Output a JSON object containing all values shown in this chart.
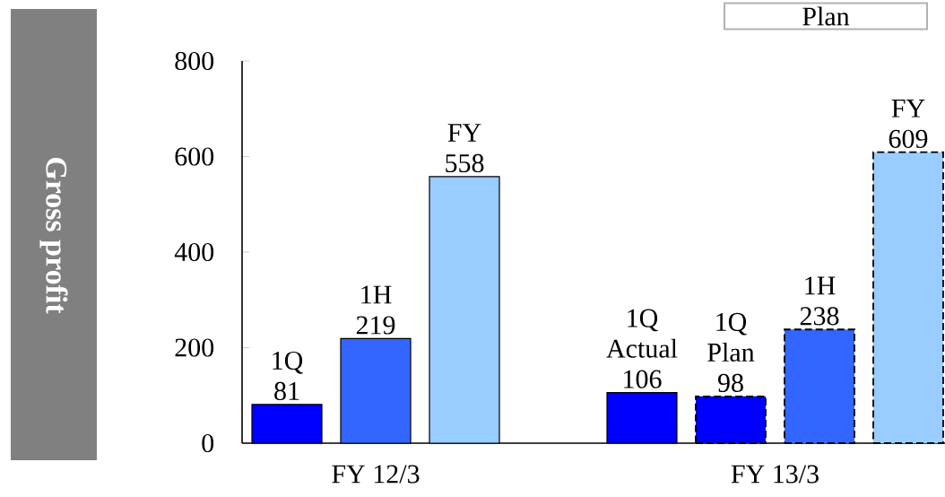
{
  "chart_data": {
    "type": "bar",
    "ylabel": "Gross profit",
    "categories": [
      "1Q",
      "1H",
      "FY",
      null,
      "1Q Actual",
      "1Q Plan",
      "1H",
      "FY"
    ],
    "series": [
      {
        "colors": [
          "#0000ff",
          "#3366ff",
          "#99ccff",
          null,
          "#0000ff",
          null,
          null,
          null
        ],
        "values": [
          81,
          219,
          558,
          null,
          106,
          null,
          null,
          null
        ]
      },
      {
        "colors": [
          null,
          null,
          null,
          null,
          null,
          "#0000ff",
          "#3366ff",
          "#99ccff"
        ],
        "line_style": "dashed",
        "values": [
          null,
          null,
          null,
          null,
          null,
          98,
          238,
          609
        ]
      }
    ],
    "ylim": [
      0,
      800
    ],
    "yticks": [
      0,
      200,
      400,
      600,
      800
    ],
    "data_labels": true,
    "annotations": [
      "FY 12/3",
      "FY 13/3",
      "Plan"
    ]
  }
}
